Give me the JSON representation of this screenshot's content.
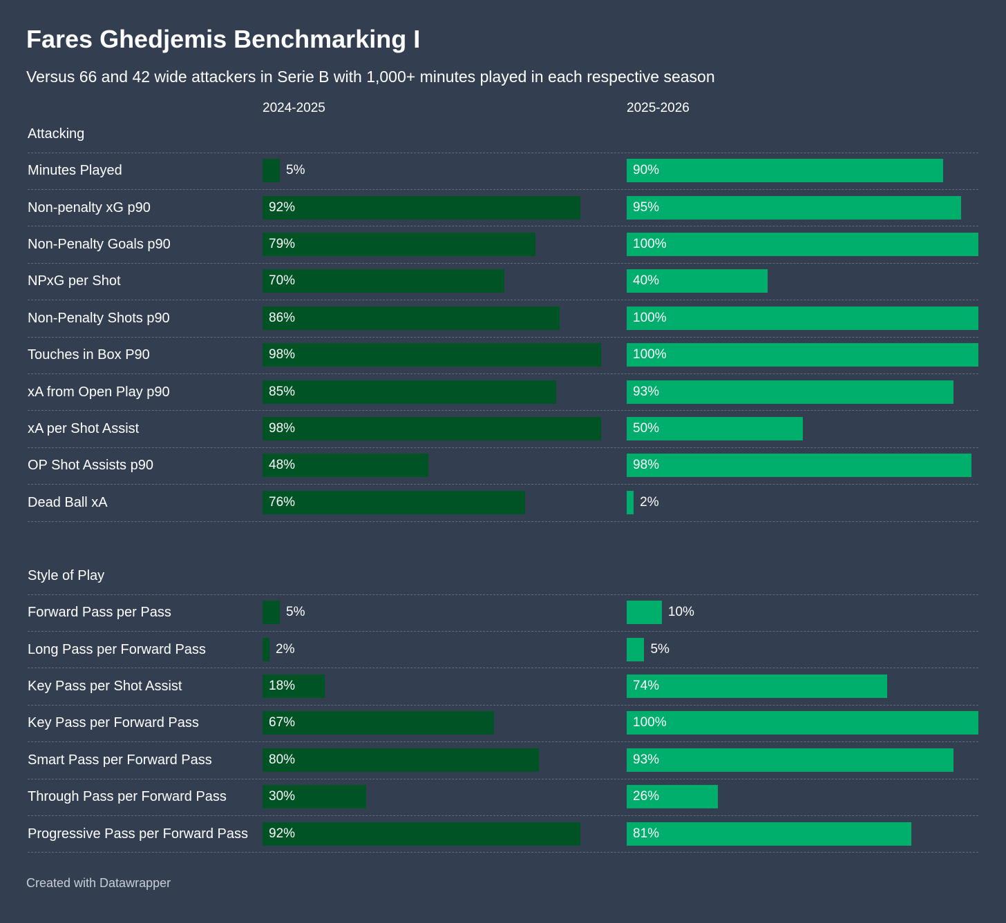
{
  "title": "Fares Ghedjemis Benchmarking I",
  "subtitle": "Versus 66 and 42 wide attackers in Serie B with 1,000+ minutes played in each respective season",
  "footer": "Created with Datawrapper",
  "colors": {
    "background": "#333f50",
    "series_2024": "#005325",
    "series_2025": "#00ae6b"
  },
  "chart_data": {
    "type": "bar",
    "orientation": "horizontal",
    "unit": "%",
    "xlim": [
      0,
      100
    ],
    "series": [
      {
        "name": "2024-2025"
      },
      {
        "name": "2025-2026"
      }
    ],
    "groups": [
      {
        "name": "Attacking",
        "rows": [
          {
            "label": "Minutes Played",
            "values": [
              5,
              90
            ]
          },
          {
            "label": "Non-penalty xG p90",
            "values": [
              92,
              95
            ]
          },
          {
            "label": "Non-Penalty Goals p90",
            "values": [
              79,
              100
            ]
          },
          {
            "label": "NPxG per Shot",
            "values": [
              70,
              40
            ]
          },
          {
            "label": "Non-Penalty Shots p90",
            "values": [
              86,
              100
            ]
          },
          {
            "label": "Touches in Box P90",
            "values": [
              98,
              100
            ]
          },
          {
            "label": "xA from Open Play p90",
            "values": [
              85,
              93
            ]
          },
          {
            "label": "xA per Shot Assist",
            "values": [
              98,
              50
            ]
          },
          {
            "label": "OP Shot Assists p90",
            "values": [
              48,
              98
            ]
          },
          {
            "label": "Dead Ball xA",
            "values": [
              76,
              2
            ]
          }
        ]
      },
      {
        "name": "Style of Play",
        "rows": [
          {
            "label": "Forward Pass per Pass",
            "values": [
              5,
              10
            ]
          },
          {
            "label": "Long Pass per Forward Pass",
            "values": [
              2,
              5
            ]
          },
          {
            "label": "Key Pass per Shot Assist",
            "values": [
              18,
              74
            ]
          },
          {
            "label": "Key Pass per Forward Pass",
            "values": [
              67,
              100
            ]
          },
          {
            "label": "Smart Pass per Forward Pass",
            "values": [
              80,
              93
            ]
          },
          {
            "label": "Through Pass per Forward Pass",
            "values": [
              30,
              26
            ]
          },
          {
            "label": "Progressive Pass per Forward Pass",
            "values": [
              92,
              81
            ]
          }
        ]
      }
    ]
  }
}
